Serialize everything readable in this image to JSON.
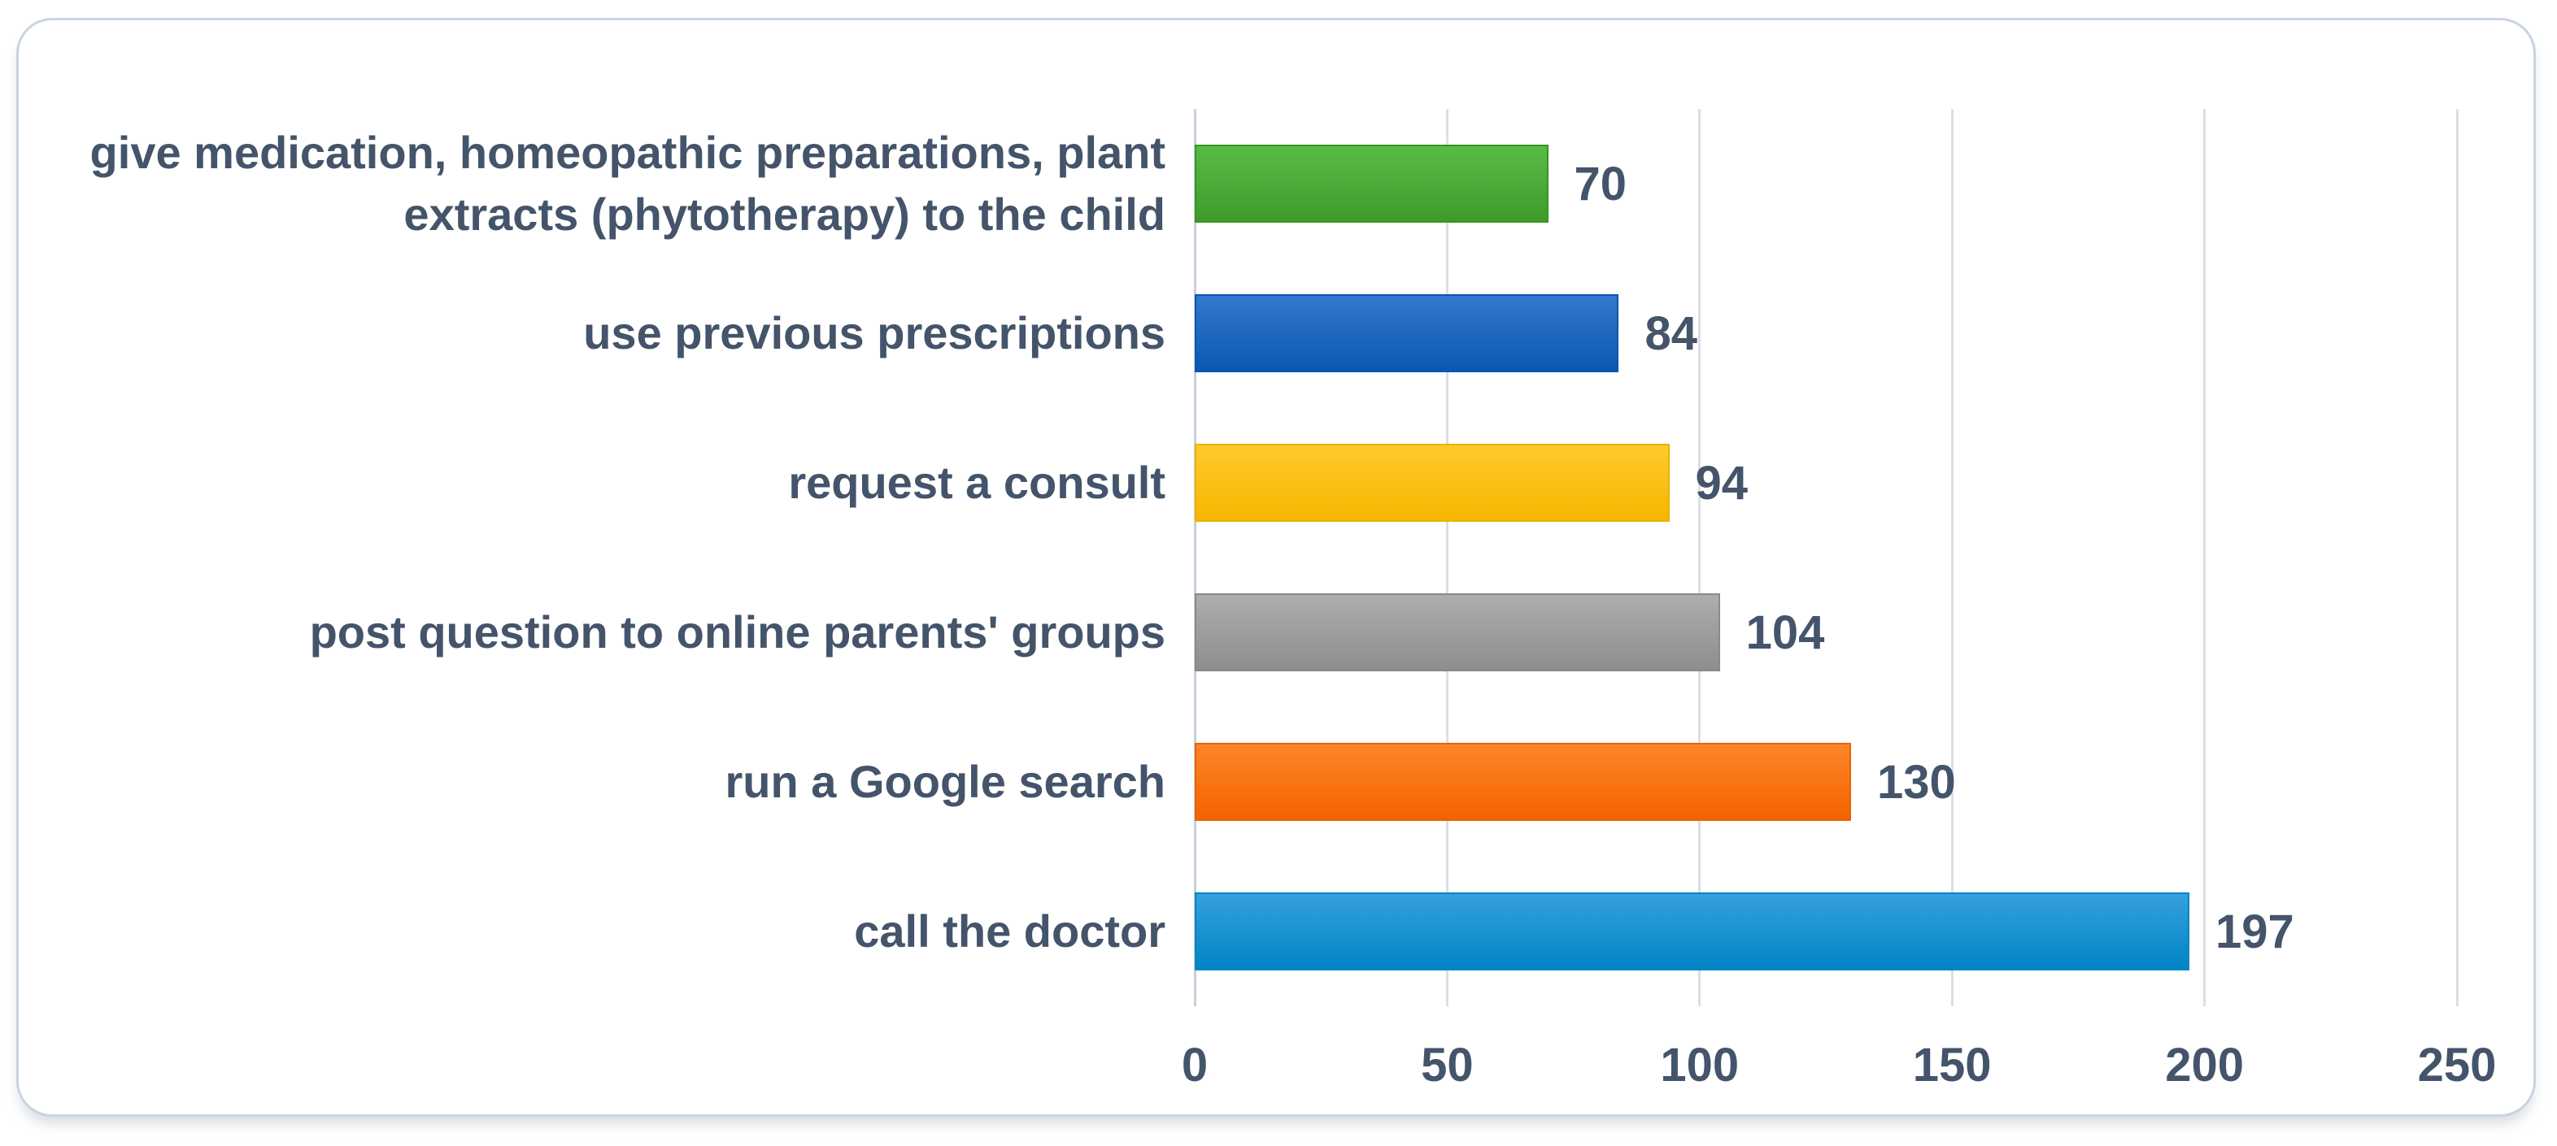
{
  "chart_data": {
    "type": "bar",
    "orientation": "horizontal",
    "title": "",
    "xlabel": "",
    "ylabel": "",
    "xlim": [
      0,
      250
    ],
    "x_ticks": [
      0,
      50,
      100,
      150,
      200,
      250
    ],
    "grid": "vertical",
    "legend": "none",
    "value_labels_shown": true,
    "categories": [
      "give medication, homeopathic preparations, plant extracts (phytotherapy) to the child",
      "use previous prescriptions",
      "request a consult",
      "post question to online parents' groups",
      "run a Google search",
      "call the doctor"
    ],
    "values": [
      70,
      84,
      94,
      104,
      130,
      197
    ],
    "bar_colors": [
      {
        "name": "green",
        "top": "#58bc45",
        "bottom": "#3e9b2b",
        "border": "#379424"
      },
      {
        "name": "blue",
        "top": "#3379cc",
        "bottom": "#0a57b2",
        "border": "#0a57b2"
      },
      {
        "name": "yellow",
        "top": "#ffcb2d",
        "bottom": "#f6b600",
        "border": "#efb000"
      },
      {
        "name": "gray",
        "top": "#adadad",
        "bottom": "#8e8e8e",
        "border": "#8a8a8a"
      },
      {
        "name": "orange",
        "top": "#ff8528",
        "bottom": "#f26300",
        "border": "#e86200"
      },
      {
        "name": "light-blue",
        "top": "#35a1dc",
        "bottom": "#0084c6",
        "border": "#0084c6"
      }
    ],
    "colors": {
      "text": "#44546a",
      "gridline": "#dadfe8",
      "axis_line": "#c8cfdb",
      "card_border": "#c9d4e0",
      "background": "#ffffff"
    }
  }
}
